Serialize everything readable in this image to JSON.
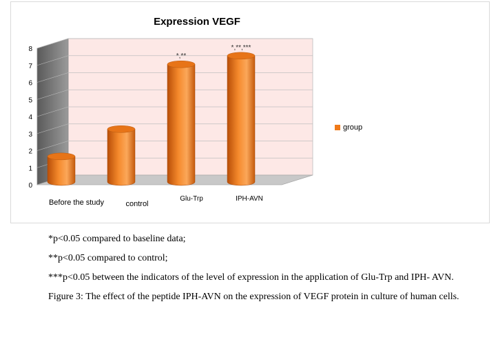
{
  "chart_data": {
    "type": "bar",
    "title": "Expression VEGF",
    "categories": [
      "Before the study",
      "control",
      "Glu-Trp",
      "IPH-AVN"
    ],
    "series": [
      {
        "name": "group",
        "values": [
          1.5,
          3.1,
          6.9,
          7.4
        ]
      }
    ],
    "annotations": [
      "",
      "",
      "*,**",
      "*,**,***"
    ],
    "yticks": [
      0,
      1,
      2,
      3,
      4,
      5,
      6,
      7,
      8
    ],
    "ylim": [
      0,
      8
    ],
    "grid": true,
    "legend": "right",
    "bar_color": "#f07a1a",
    "wall_color": "#fde8e6"
  },
  "notes": {
    "line1": "*p<0.05 compared to baseline data;",
    "line2": "**p<0.05 compared to control;",
    "line3": "***p<0.05 between the indicators of the level of expression in the application of Glu-Trp and IPH- AVN.",
    "caption": "Figure 3: The effect of the peptide IPH-AVN on the expression of VEGF protein in culture of human cells."
  }
}
